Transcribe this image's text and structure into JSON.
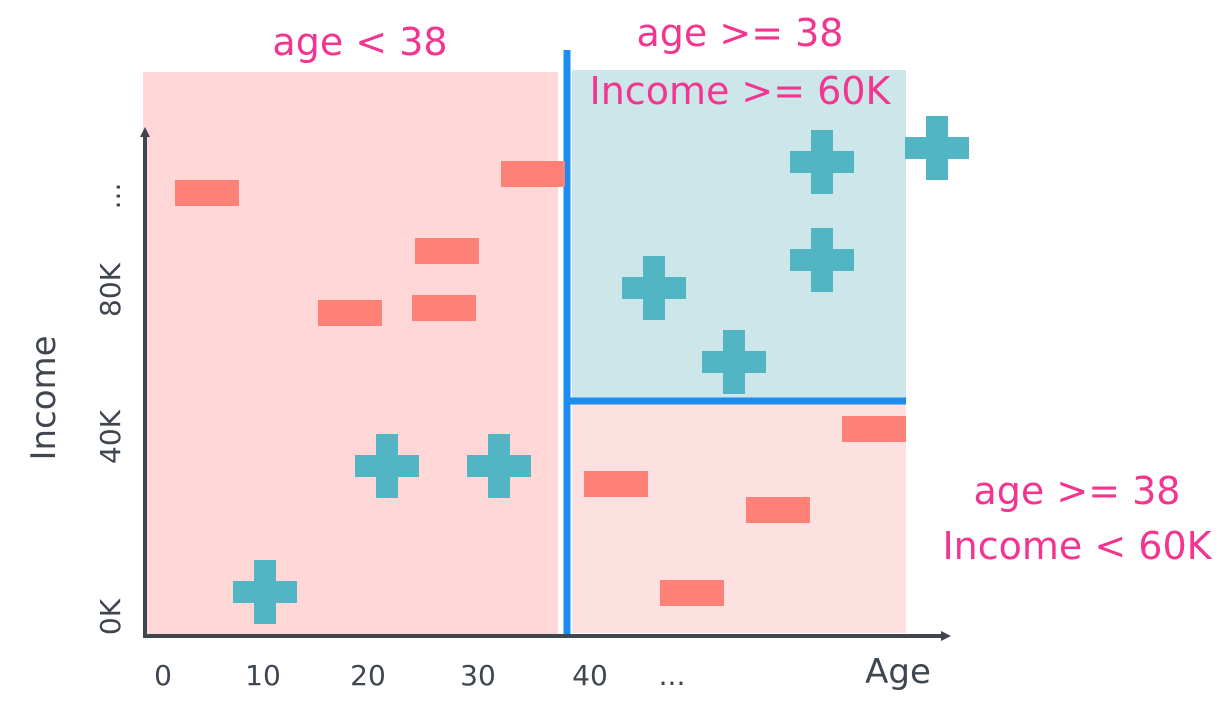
{
  "regions": {
    "left": {
      "line1": "age < 38"
    },
    "top_right": {
      "line1": "age >= 38",
      "line2": "Income >= 60K"
    },
    "bottom_right": {
      "line1": "age >= 38",
      "line2": "Income < 60K"
    }
  },
  "axes": {
    "x_title": "Age",
    "y_title": "Income",
    "x_ticks": [
      "0",
      "10",
      "20",
      "30",
      "40",
      "..."
    ],
    "y_ticks": [
      "0K",
      "40K",
      "80K",
      "..."
    ]
  },
  "colors": {
    "left_region": "#fed7d6",
    "top_right_region": "#cde6ea",
    "bottom_right_region": "#fde1e1",
    "split_line": "#1b8cf0",
    "axis": "#404650",
    "minus": "#fd8177",
    "plus": "#52b5c3",
    "label": "#f2368f"
  },
  "icons": {
    "positive": "plus-icon",
    "negative": "minus-icon"
  }
}
